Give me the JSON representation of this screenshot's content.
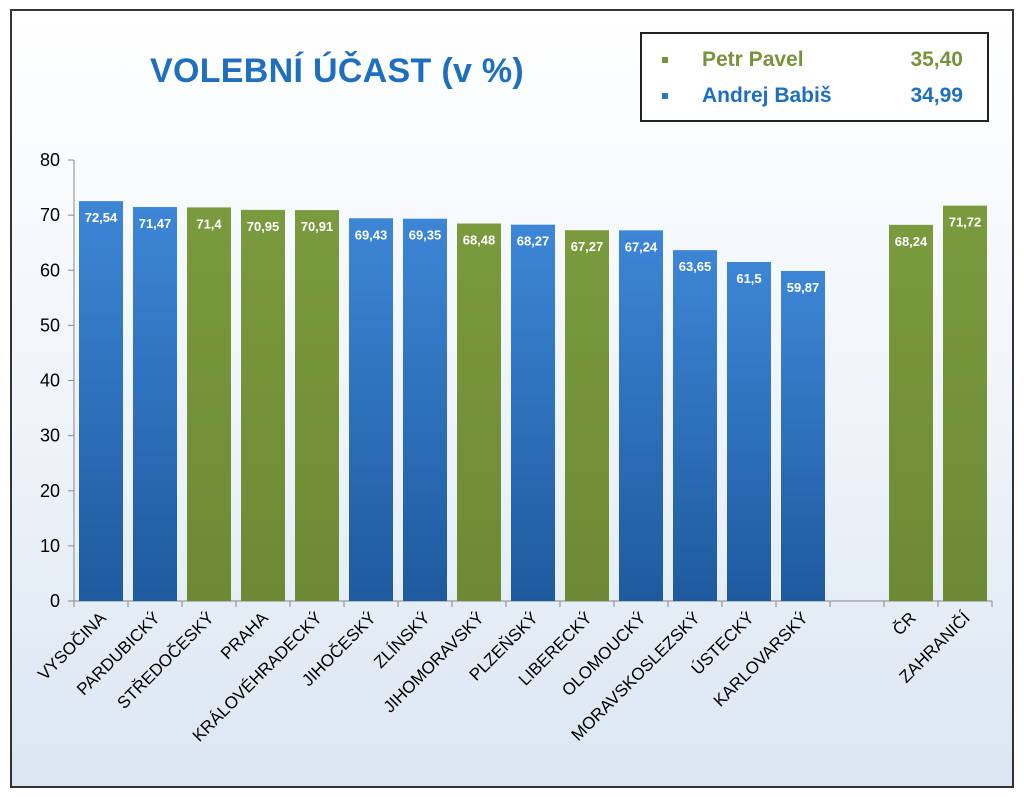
{
  "chart_data": {
    "type": "bar",
    "title": "VOLEBNÍ ÚČAST (v %)",
    "xlabel": "",
    "ylabel": "",
    "ylim": [
      0,
      80
    ],
    "yticks": [
      0,
      10,
      20,
      30,
      40,
      50,
      60,
      70,
      80
    ],
    "grid": false,
    "legend_position": "top-right",
    "categories": [
      "VYSOČINA",
      "PARDUBICKÝ",
      "STŘEDOČESKÝ",
      "PRAHA",
      "KRÁLOVÉHRADECKÝ",
      "JIHOČESKÝ",
      "ZLÍNSKÝ",
      "JIHOMORAVSKÝ",
      "PLZEŇSKÝ",
      "LIBERECKÝ",
      "OLOMOUCKÝ",
      "MORAVSKOSLEZSKÝ",
      "ÚSTECKÝ",
      "KARLOVARSKÝ",
      "",
      "ČR",
      "ZAHRANIČÍ"
    ],
    "values": [
      72.54,
      71.47,
      71.4,
      70.95,
      70.91,
      69.43,
      69.35,
      68.48,
      68.27,
      67.27,
      67.24,
      63.65,
      61.5,
      59.87,
      null,
      68.24,
      71.72
    ],
    "value_labels": [
      "72,54",
      "71,47",
      "71,4",
      "70,95",
      "70,91",
      "69,43",
      "69,35",
      "68,48",
      "68,27",
      "67,27",
      "67,24",
      "63,65",
      "61,5",
      "59,87",
      "",
      "68,24",
      "71,72"
    ],
    "bar_winner": [
      "Andrej Babiš",
      "Andrej Babiš",
      "Petr Pavel",
      "Petr Pavel",
      "Petr Pavel",
      "Andrej Babiš",
      "Andrej Babiš",
      "Petr Pavel",
      "Andrej Babiš",
      "Petr Pavel",
      "Andrej Babiš",
      "Andrej Babiš",
      "Andrej Babiš",
      "Andrej Babiš",
      null,
      "Petr Pavel",
      "Petr Pavel"
    ],
    "series_legend": [
      {
        "name": "Petr Pavel",
        "value": "35,40",
        "color": "#77933c"
      },
      {
        "name": "Andrej Babiš",
        "value": "34,99",
        "color": "#2e75c6"
      }
    ]
  },
  "colors": {
    "green": "#77933c",
    "blue_top": "#3d86d6",
    "blue_bottom": "#1e5a9e",
    "title": "#1f6fbf"
  }
}
